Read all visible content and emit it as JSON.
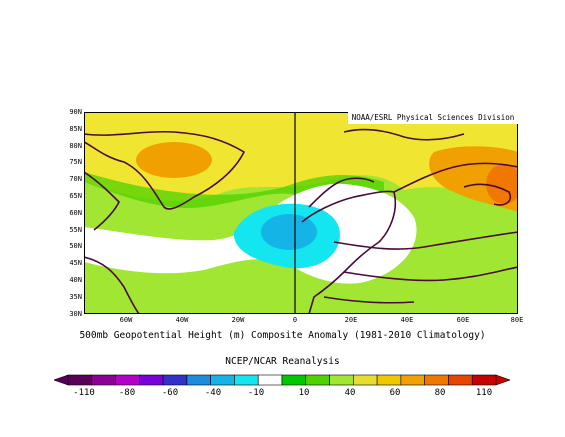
{
  "map": {
    "credit": "NOAA/ESRL Physical Sciences Division",
    "caption": "500mb Geopotential Height (m) Composite Anomaly (1981-2010 Climatology)",
    "source": "NCEP/NCAR Reanalysis",
    "lat_labels": [
      "90N",
      "85N",
      "80N",
      "75N",
      "70N",
      "65N",
      "60N",
      "55N",
      "50N",
      "45N",
      "40N",
      "35N",
      "30N"
    ],
    "lon_labels": [
      "60W",
      "40W",
      "20W",
      "0",
      "20E",
      "40E",
      "60E",
      "80E"
    ]
  },
  "colorbar": {
    "labels": [
      "-110",
      "-80",
      "-60",
      "-40",
      "-10",
      "10",
      "40",
      "60",
      "80",
      "110"
    ],
    "colors": [
      "#5a005a",
      "#8c0096",
      "#b400c8",
      "#7800dc",
      "#3232c8",
      "#1e8cdc",
      "#14b4e6",
      "#14e6f0",
      "#ffffff",
      "#00c800",
      "#50d200",
      "#a0e632",
      "#e6dc32",
      "#f0c800",
      "#f0a000",
      "#f07800",
      "#e64600",
      "#c80000"
    ]
  }
}
